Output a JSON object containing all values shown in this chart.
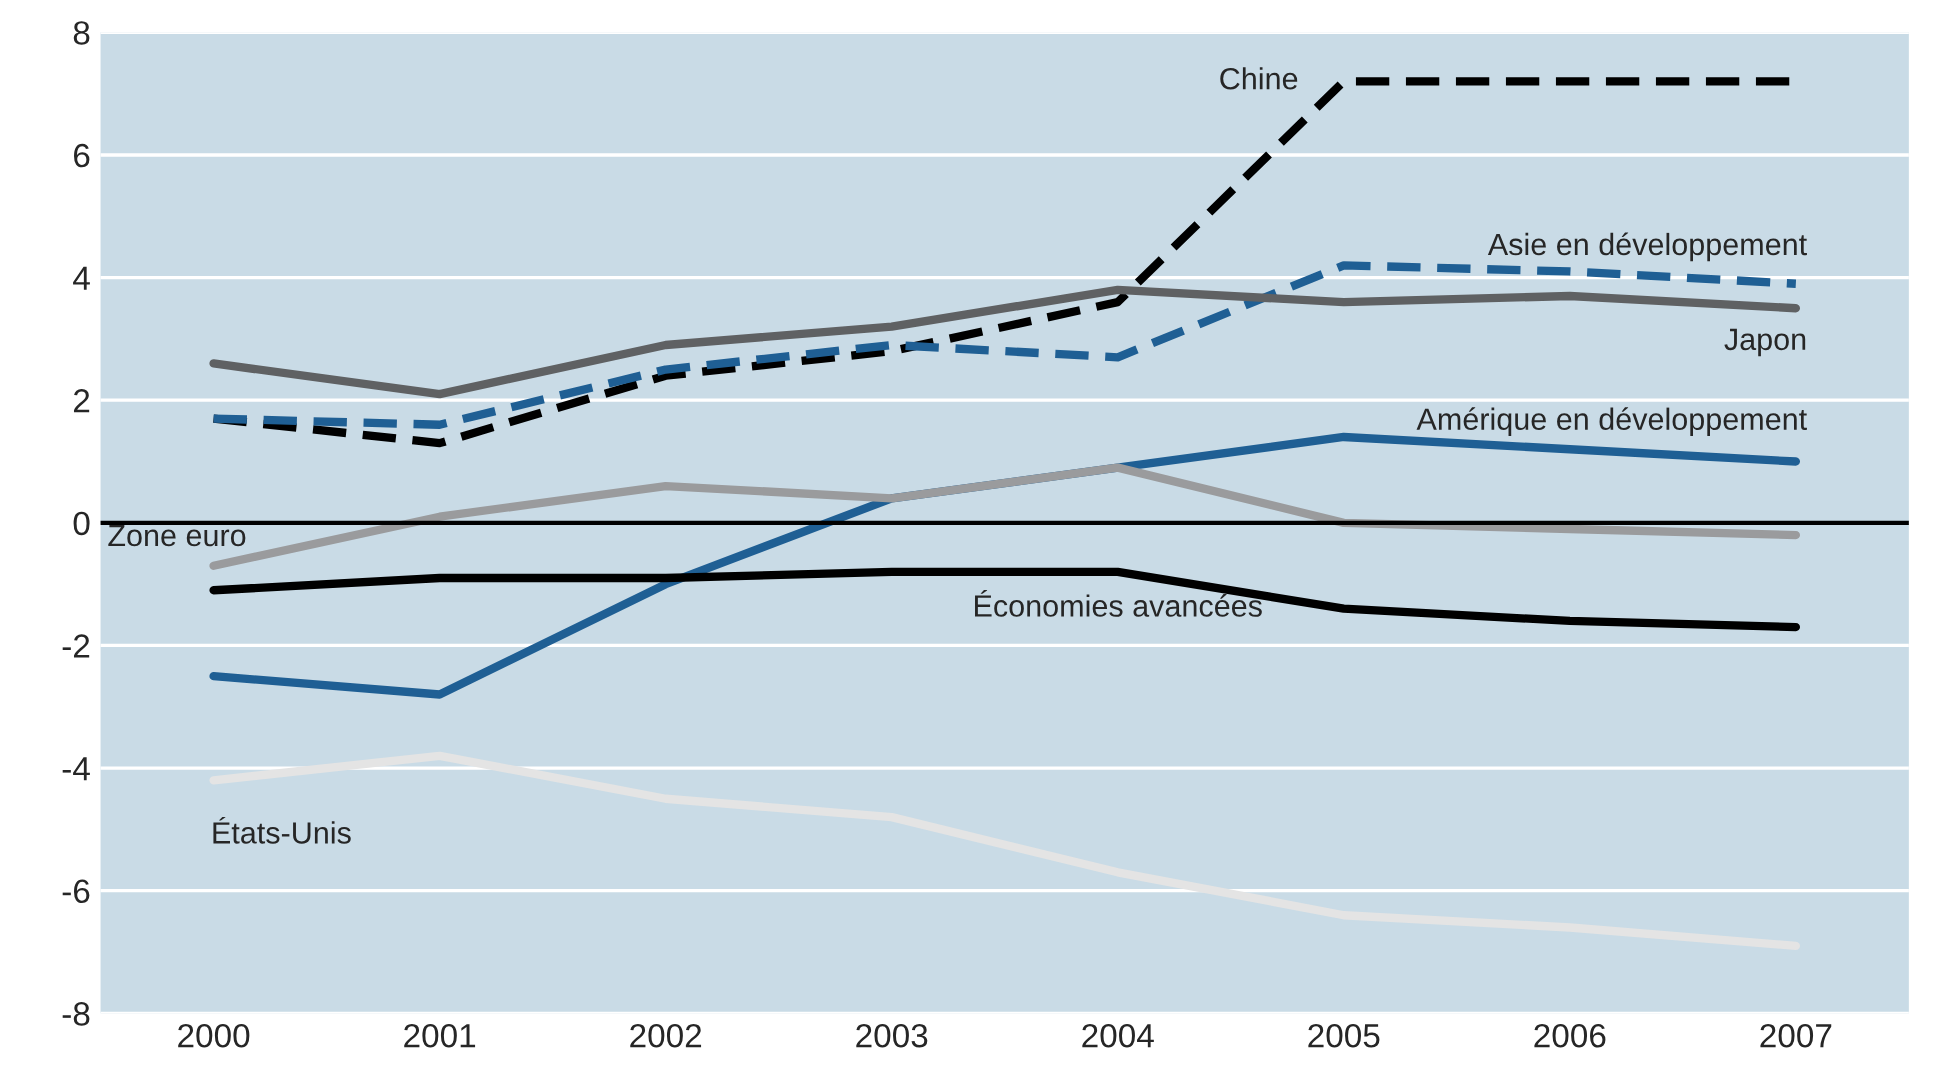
{
  "chart_data": {
    "type": "line",
    "categories": [
      "2000",
      "2001",
      "2002",
      "2003",
      "2004",
      "2005",
      "2006",
      "2007"
    ],
    "ylim": [
      -8,
      8
    ],
    "yticks": [
      -8,
      -6,
      -4,
      -2,
      0,
      2,
      4,
      6,
      8
    ],
    "grid": "y",
    "legend": false,
    "ref_lines": [
      {
        "axis": "y",
        "value": 0,
        "color": "#000000"
      }
    ],
    "series": [
      {
        "name": "Chine",
        "color": "#000000",
        "line_style": "dashed",
        "values": [
          1.7,
          1.3,
          2.4,
          2.8,
          3.6,
          7.2,
          7.2,
          7.2
        ]
      },
      {
        "name": "Asie en développement",
        "color": "#1f5f94",
        "line_style": "dashed",
        "values": [
          1.7,
          1.6,
          2.5,
          2.9,
          2.7,
          4.2,
          4.1,
          3.9
        ]
      },
      {
        "name": "Japon",
        "color": "#5f6163",
        "line_style": "solid",
        "values": [
          2.6,
          2.1,
          2.9,
          3.2,
          3.8,
          3.6,
          3.7,
          3.5
        ]
      },
      {
        "name": "Amérique en développement",
        "color": "#1f5f94",
        "line_style": "solid",
        "values": [
          -2.5,
          -2.8,
          -1.0,
          0.4,
          0.9,
          1.4,
          1.2,
          1.0
        ]
      },
      {
        "name": "Zone euro",
        "color": "#9a9b9d",
        "line_style": "solid",
        "values": [
          -0.7,
          0.1,
          0.6,
          0.4,
          0.9,
          0.0,
          -0.1,
          -0.2
        ]
      },
      {
        "name": "Économies avancées",
        "color": "#000000",
        "line_style": "solid",
        "values": [
          -1.1,
          -0.9,
          -0.9,
          -0.8,
          -0.8,
          -1.4,
          -1.6,
          -1.7
        ]
      },
      {
        "name": "États-Unis",
        "color": "#e4e4e4",
        "line_style": "solid",
        "values": [
          -4.2,
          -3.8,
          -4.5,
          -4.8,
          -5.7,
          -6.4,
          -6.6,
          -6.9
        ]
      }
    ]
  }
}
